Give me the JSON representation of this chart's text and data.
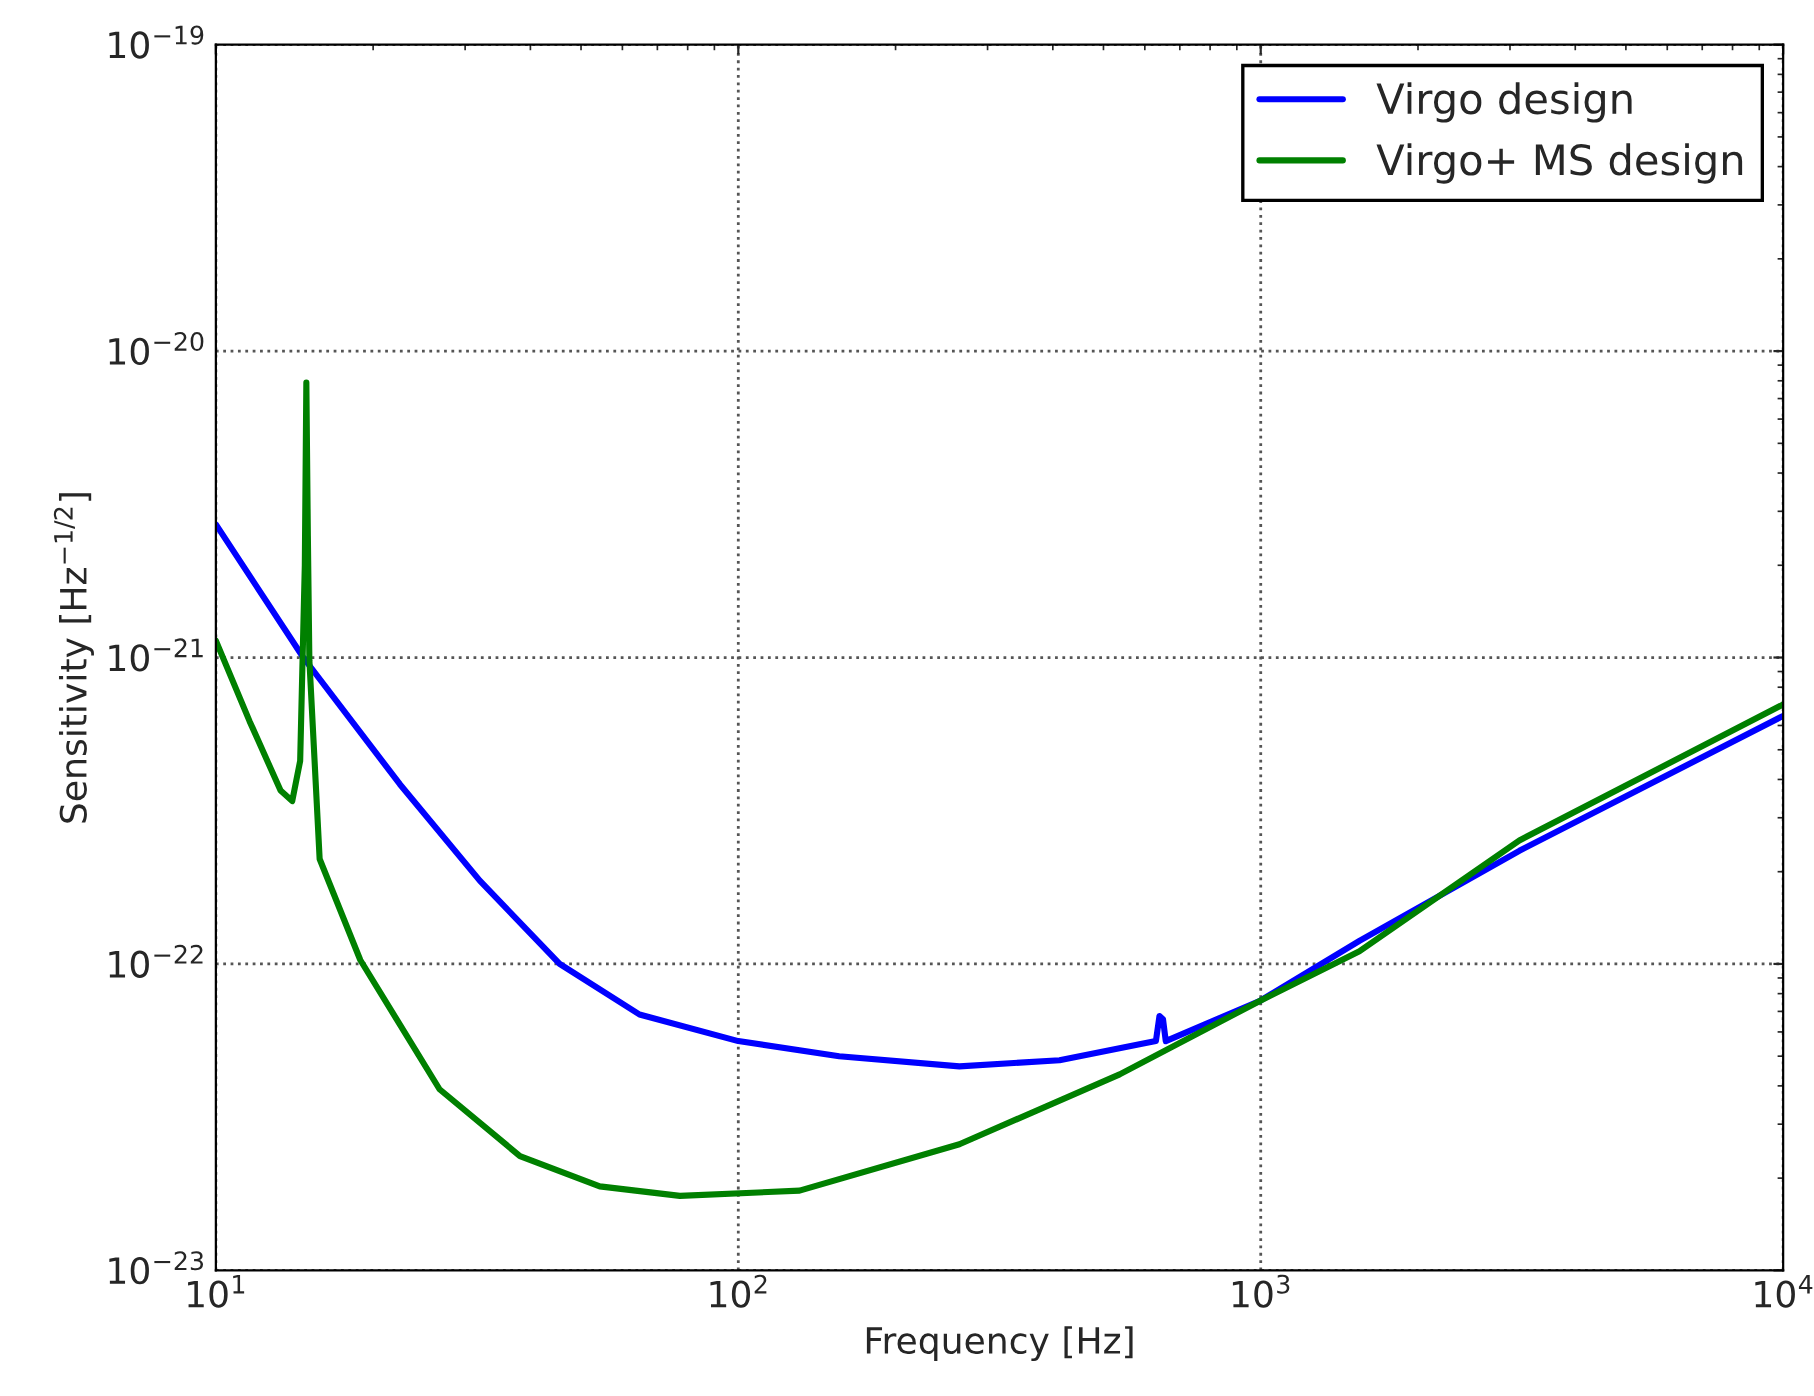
{
  "chart_data": {
    "type": "line",
    "xlabel": "Frequency [Hz]",
    "ylabel": "Sensitivity [Hz$^{−1/2}$]",
    "log": "xy",
    "grid": true,
    "legend": "top right",
    "line_style": "solid",
    "xlim": [
      10,
      10000
    ],
    "ylim": [
      1e-23,
      1e-19
    ],
    "xticks": [
      {
        "value": 10,
        "label": "10$^{1}$"
      },
      {
        "value": 100,
        "label": "10$^{2}$"
      },
      {
        "value": 1000,
        "label": "10$^{3}$"
      },
      {
        "value": 10000,
        "label": "10$^{4}$"
      }
    ],
    "yticks": [
      {
        "value": 1e-23,
        "label": "10$^{−23}$"
      },
      {
        "value": 1e-22,
        "label": "10$^{−22}$"
      },
      {
        "value": 1e-21,
        "label": "10$^{−21}$"
      },
      {
        "value": 1e-20,
        "label": "10$^{−20}$"
      },
      {
        "value": 1e-19,
        "label": "10$^{−19}$"
      }
    ],
    "series": [
      {
        "name": "Virgo design",
        "color": "#0000ff",
        "x": [
          10,
          14.7,
          22.5,
          32,
          45.5,
          64.7,
          100,
          156,
          265,
          412,
          586,
          630,
          640,
          650,
          658,
          1000,
          1545,
          3126,
          10000
        ],
        "values": [
          2.72e-21,
          1e-21,
          3.86e-22,
          1.87e-22,
          1e-22,
          6.84e-23,
          5.6e-23,
          5e-23,
          4.63e-23,
          4.85e-23,
          5.47e-23,
          5.6e-23,
          6.76e-23,
          6.6e-23,
          5.6e-23,
          7.6e-23,
          1.19e-22,
          2.34e-22,
          6.45e-22
        ]
      },
      {
        "name": "Virgo+ MS design",
        "color": "#008000",
        "x": [
          10,
          11.6,
          13.3,
          14.0,
          14.5,
          14.8,
          14.9,
          15.0,
          15.1,
          15.8,
          18.9,
          26.8,
          38.2,
          54.3,
          77.3,
          131,
          265,
          537,
          1000,
          1545,
          3126,
          10000
        ],
        "values": [
          1.135e-21,
          6.2e-22,
          3.68e-22,
          3.4e-22,
          4.6e-22,
          2e-21,
          7.9e-21,
          2.5e-21,
          9.8e-22,
          2.2e-22,
          1.03e-22,
          3.9e-23,
          2.36e-23,
          1.88e-23,
          1.75e-23,
          1.82e-23,
          2.58e-23,
          4.36e-23,
          7.6e-23,
          1.1e-22,
          2.53e-22,
          7.03e-22
        ]
      }
    ]
  }
}
